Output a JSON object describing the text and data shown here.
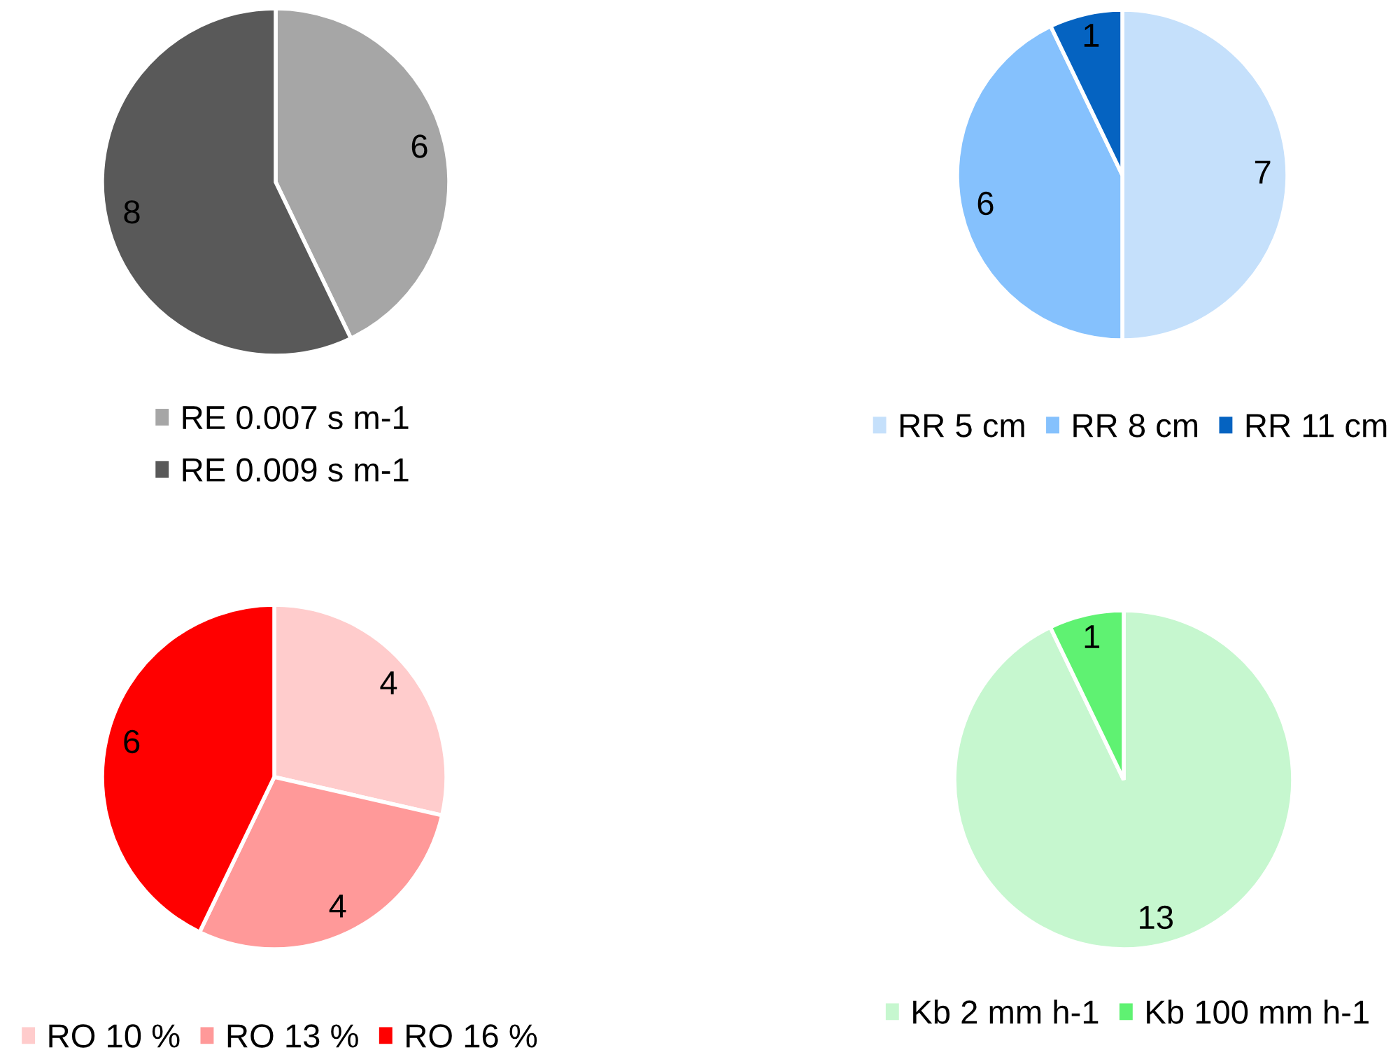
{
  "chart_data": [
    {
      "type": "pie",
      "categories": [
        "RE 0.007 s m-1",
        "RE 0.009 s m-1"
      ],
      "values": [
        6,
        8
      ],
      "colors": [
        "#a6a6a6",
        "#595959"
      ],
      "data_labels": true,
      "legend": "bottom"
    },
    {
      "type": "pie",
      "categories": [
        "RR 5 cm",
        "RR 8 cm",
        "RR 11 cm"
      ],
      "values": [
        7,
        6,
        1
      ],
      "colors": [
        "#c5e0fb",
        "#85c1fd",
        "#0563c1"
      ],
      "data_labels": true,
      "legend": "bottom"
    },
    {
      "type": "pie",
      "categories": [
        "RO 10 %",
        "RO 13 %",
        "RO 16 %"
      ],
      "values": [
        4,
        4,
        6
      ],
      "colors": [
        "#ffcccc",
        "#ff9999",
        "#ff0000"
      ],
      "data_labels": true,
      "legend": "bottom"
    },
    {
      "type": "pie",
      "categories": [
        "Kb 2 mm h-1",
        "Kb 100 mm h-1"
      ],
      "values": [
        13,
        1
      ],
      "colors": [
        "#c6f7cf",
        "#5ff272"
      ],
      "data_labels": true,
      "legend": "bottom"
    }
  ]
}
